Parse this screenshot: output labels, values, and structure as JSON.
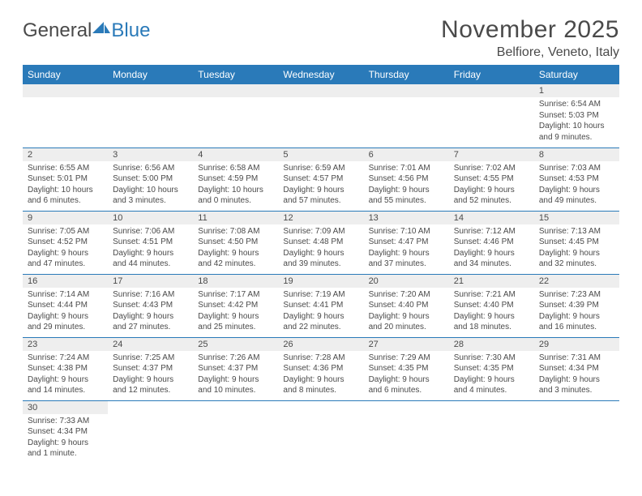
{
  "logo": {
    "text1": "General",
    "text2": "Blue"
  },
  "title": "November 2025",
  "location": "Belfiore, Veneto, Italy",
  "headers": [
    "Sunday",
    "Monday",
    "Tuesday",
    "Wednesday",
    "Thursday",
    "Friday",
    "Saturday"
  ],
  "colors": {
    "header_bg": "#2a7ab9",
    "header_text": "#ffffff",
    "daynum_bg": "#eeeeee",
    "text": "#4a4a4a",
    "row_border": "#2a7ab9",
    "background": "#ffffff"
  },
  "weeks": [
    [
      null,
      null,
      null,
      null,
      null,
      null,
      {
        "n": "1",
        "sr": "Sunrise: 6:54 AM",
        "ss": "Sunset: 5:03 PM",
        "dl1": "Daylight: 10 hours",
        "dl2": "and 9 minutes."
      }
    ],
    [
      {
        "n": "2",
        "sr": "Sunrise: 6:55 AM",
        "ss": "Sunset: 5:01 PM",
        "dl1": "Daylight: 10 hours",
        "dl2": "and 6 minutes."
      },
      {
        "n": "3",
        "sr": "Sunrise: 6:56 AM",
        "ss": "Sunset: 5:00 PM",
        "dl1": "Daylight: 10 hours",
        "dl2": "and 3 minutes."
      },
      {
        "n": "4",
        "sr": "Sunrise: 6:58 AM",
        "ss": "Sunset: 4:59 PM",
        "dl1": "Daylight: 10 hours",
        "dl2": "and 0 minutes."
      },
      {
        "n": "5",
        "sr": "Sunrise: 6:59 AM",
        "ss": "Sunset: 4:57 PM",
        "dl1": "Daylight: 9 hours",
        "dl2": "and 57 minutes."
      },
      {
        "n": "6",
        "sr": "Sunrise: 7:01 AM",
        "ss": "Sunset: 4:56 PM",
        "dl1": "Daylight: 9 hours",
        "dl2": "and 55 minutes."
      },
      {
        "n": "7",
        "sr": "Sunrise: 7:02 AM",
        "ss": "Sunset: 4:55 PM",
        "dl1": "Daylight: 9 hours",
        "dl2": "and 52 minutes."
      },
      {
        "n": "8",
        "sr": "Sunrise: 7:03 AM",
        "ss": "Sunset: 4:53 PM",
        "dl1": "Daylight: 9 hours",
        "dl2": "and 49 minutes."
      }
    ],
    [
      {
        "n": "9",
        "sr": "Sunrise: 7:05 AM",
        "ss": "Sunset: 4:52 PM",
        "dl1": "Daylight: 9 hours",
        "dl2": "and 47 minutes."
      },
      {
        "n": "10",
        "sr": "Sunrise: 7:06 AM",
        "ss": "Sunset: 4:51 PM",
        "dl1": "Daylight: 9 hours",
        "dl2": "and 44 minutes."
      },
      {
        "n": "11",
        "sr": "Sunrise: 7:08 AM",
        "ss": "Sunset: 4:50 PM",
        "dl1": "Daylight: 9 hours",
        "dl2": "and 42 minutes."
      },
      {
        "n": "12",
        "sr": "Sunrise: 7:09 AM",
        "ss": "Sunset: 4:48 PM",
        "dl1": "Daylight: 9 hours",
        "dl2": "and 39 minutes."
      },
      {
        "n": "13",
        "sr": "Sunrise: 7:10 AM",
        "ss": "Sunset: 4:47 PM",
        "dl1": "Daylight: 9 hours",
        "dl2": "and 37 minutes."
      },
      {
        "n": "14",
        "sr": "Sunrise: 7:12 AM",
        "ss": "Sunset: 4:46 PM",
        "dl1": "Daylight: 9 hours",
        "dl2": "and 34 minutes."
      },
      {
        "n": "15",
        "sr": "Sunrise: 7:13 AM",
        "ss": "Sunset: 4:45 PM",
        "dl1": "Daylight: 9 hours",
        "dl2": "and 32 minutes."
      }
    ],
    [
      {
        "n": "16",
        "sr": "Sunrise: 7:14 AM",
        "ss": "Sunset: 4:44 PM",
        "dl1": "Daylight: 9 hours",
        "dl2": "and 29 minutes."
      },
      {
        "n": "17",
        "sr": "Sunrise: 7:16 AM",
        "ss": "Sunset: 4:43 PM",
        "dl1": "Daylight: 9 hours",
        "dl2": "and 27 minutes."
      },
      {
        "n": "18",
        "sr": "Sunrise: 7:17 AM",
        "ss": "Sunset: 4:42 PM",
        "dl1": "Daylight: 9 hours",
        "dl2": "and 25 minutes."
      },
      {
        "n": "19",
        "sr": "Sunrise: 7:19 AM",
        "ss": "Sunset: 4:41 PM",
        "dl1": "Daylight: 9 hours",
        "dl2": "and 22 minutes."
      },
      {
        "n": "20",
        "sr": "Sunrise: 7:20 AM",
        "ss": "Sunset: 4:40 PM",
        "dl1": "Daylight: 9 hours",
        "dl2": "and 20 minutes."
      },
      {
        "n": "21",
        "sr": "Sunrise: 7:21 AM",
        "ss": "Sunset: 4:40 PM",
        "dl1": "Daylight: 9 hours",
        "dl2": "and 18 minutes."
      },
      {
        "n": "22",
        "sr": "Sunrise: 7:23 AM",
        "ss": "Sunset: 4:39 PM",
        "dl1": "Daylight: 9 hours",
        "dl2": "and 16 minutes."
      }
    ],
    [
      {
        "n": "23",
        "sr": "Sunrise: 7:24 AM",
        "ss": "Sunset: 4:38 PM",
        "dl1": "Daylight: 9 hours",
        "dl2": "and 14 minutes."
      },
      {
        "n": "24",
        "sr": "Sunrise: 7:25 AM",
        "ss": "Sunset: 4:37 PM",
        "dl1": "Daylight: 9 hours",
        "dl2": "and 12 minutes."
      },
      {
        "n": "25",
        "sr": "Sunrise: 7:26 AM",
        "ss": "Sunset: 4:37 PM",
        "dl1": "Daylight: 9 hours",
        "dl2": "and 10 minutes."
      },
      {
        "n": "26",
        "sr": "Sunrise: 7:28 AM",
        "ss": "Sunset: 4:36 PM",
        "dl1": "Daylight: 9 hours",
        "dl2": "and 8 minutes."
      },
      {
        "n": "27",
        "sr": "Sunrise: 7:29 AM",
        "ss": "Sunset: 4:35 PM",
        "dl1": "Daylight: 9 hours",
        "dl2": "and 6 minutes."
      },
      {
        "n": "28",
        "sr": "Sunrise: 7:30 AM",
        "ss": "Sunset: 4:35 PM",
        "dl1": "Daylight: 9 hours",
        "dl2": "and 4 minutes."
      },
      {
        "n": "29",
        "sr": "Sunrise: 7:31 AM",
        "ss": "Sunset: 4:34 PM",
        "dl1": "Daylight: 9 hours",
        "dl2": "and 3 minutes."
      }
    ],
    [
      {
        "n": "30",
        "sr": "Sunrise: 7:33 AM",
        "ss": "Sunset: 4:34 PM",
        "dl1": "Daylight: 9 hours",
        "dl2": "and 1 minute."
      },
      null,
      null,
      null,
      null,
      null,
      null
    ]
  ]
}
